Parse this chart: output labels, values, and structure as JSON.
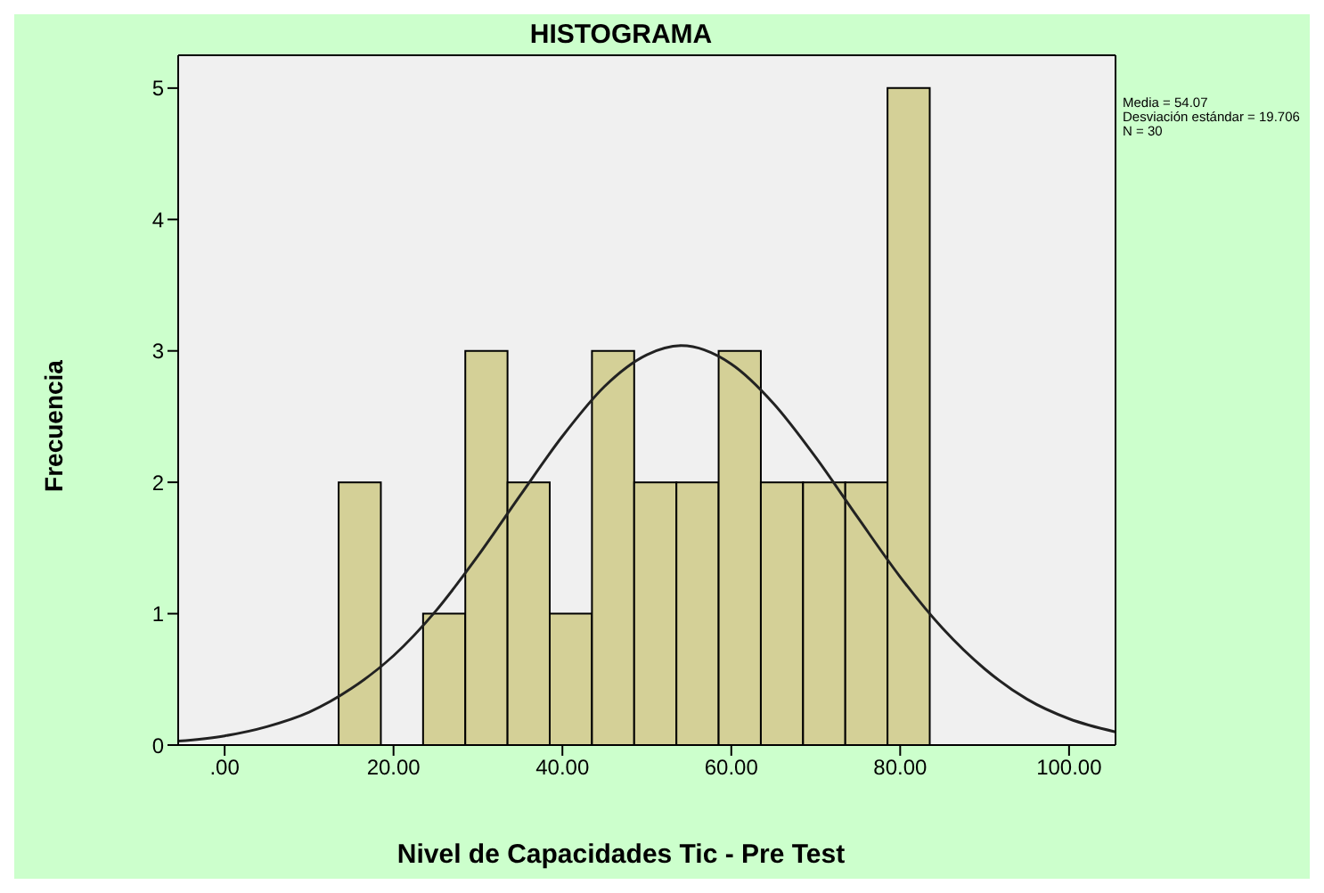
{
  "chart_data": {
    "type": "histogram",
    "title": "HISTOGRAMA",
    "xlabel": "Nivel de Capacidades Tic - Pre Test",
    "ylabel": "Frecuencia",
    "bins": [
      13.5,
      18.5,
      23.5,
      28.5,
      33.5,
      38.5,
      43.5,
      48.5,
      53.5,
      58.5,
      63.5,
      68.5,
      73.5,
      78.5,
      83.5
    ],
    "values": [
      2,
      0,
      1,
      3,
      2,
      1,
      3,
      2,
      2,
      3,
      2,
      2,
      2,
      5
    ],
    "color": "#d4d097",
    "series": [
      {
        "type": "line",
        "color": "#222222",
        "x": [
          -5.5,
          0,
          5,
          10,
          15,
          20,
          25,
          30,
          35,
          40,
          45,
          50,
          54.07,
          60,
          65,
          70,
          75,
          80,
          85,
          90,
          95,
          100,
          105.5
        ],
        "values": [
          0.03,
          0.07,
          0.14,
          0.25,
          0.43,
          0.68,
          1.02,
          1.44,
          1.9,
          2.35,
          2.73,
          2.97,
          3.04,
          2.9,
          2.6,
          2.19,
          1.73,
          1.28,
          0.89,
          0.58,
          0.35,
          0.2,
          0.1
        ]
      }
    ],
    "xlim": [
      -5.5,
      105.5
    ],
    "xticks": [
      {
        "value": 0,
        "label": ".00"
      },
      {
        "value": 20,
        "label": "20.00"
      },
      {
        "value": 40,
        "label": "40.00"
      },
      {
        "value": 60,
        "label": "60.00"
      },
      {
        "value": 80,
        "label": "80.00"
      },
      {
        "value": 100,
        "label": "100.00"
      }
    ],
    "ylim": [
      0,
      5.25
    ],
    "yticks": [
      0,
      1,
      2,
      3,
      4,
      5
    ],
    "annotations": [
      "Media = 54.07",
      "Desviación estándar = 19.706",
      "N = 30"
    ],
    "grid": false,
    "marker": "none"
  }
}
